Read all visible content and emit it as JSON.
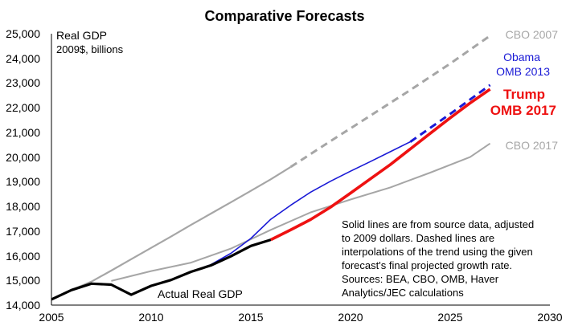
{
  "chart_data": {
    "type": "line",
    "title": "Comparative Forecasts",
    "ylabel_line1": "Real GDP",
    "ylabel_line2": "2009$, billions",
    "xlim": [
      2005,
      2030
    ],
    "ylim": [
      14000,
      25000
    ],
    "x_ticks": [
      "2005",
      "2010",
      "2015",
      "2020",
      "2025",
      "2030"
    ],
    "y_ticks": [
      "14,000",
      "15,000",
      "16,000",
      "17,000",
      "18,000",
      "19,000",
      "20,000",
      "21,000",
      "22,000",
      "23,000",
      "24,000",
      "25,000"
    ],
    "grid": false,
    "colors": {
      "actual": "#000000",
      "cbo": "#a6a6a6",
      "obama": "#1a1ad6",
      "trump": "#ee1111"
    },
    "series": [
      {
        "name": "Actual Real GDP",
        "style": "solid",
        "points": [
          [
            2005,
            14230
          ],
          [
            2006,
            14610
          ],
          [
            2007,
            14870
          ],
          [
            2008,
            14830
          ],
          [
            2009,
            14420
          ],
          [
            2010,
            14780
          ],
          [
            2011,
            15020
          ],
          [
            2012,
            15350
          ],
          [
            2013,
            15610
          ],
          [
            2014,
            15980
          ],
          [
            2015,
            16400
          ],
          [
            2016,
            16650
          ]
        ]
      },
      {
        "name": "CBO 2007",
        "style": "solid",
        "points": [
          [
            2006,
            14610
          ],
          [
            2007,
            14950
          ],
          [
            2008,
            15400
          ],
          [
            2009,
            15860
          ],
          [
            2010,
            16320
          ],
          [
            2011,
            16780
          ],
          [
            2012,
            17250
          ],
          [
            2013,
            17710
          ],
          [
            2014,
            18170
          ],
          [
            2015,
            18630
          ],
          [
            2016,
            19100
          ],
          [
            2017,
            19600
          ]
        ]
      },
      {
        "name": "CBO 2007 (interpolated)",
        "style": "dashed",
        "points": [
          [
            2017,
            19600
          ],
          [
            2019,
            20650
          ],
          [
            2021,
            21680
          ],
          [
            2023,
            22720
          ],
          [
            2025,
            23790
          ],
          [
            2027,
            24920
          ]
        ]
      },
      {
        "name": "Obama OMB 2013",
        "style": "solid",
        "points": [
          [
            2012,
            15350
          ],
          [
            2013,
            15640
          ],
          [
            2014,
            16100
          ],
          [
            2015,
            16700
          ],
          [
            2016,
            17480
          ],
          [
            2017,
            18050
          ],
          [
            2018,
            18580
          ],
          [
            2019,
            19020
          ],
          [
            2020,
            19430
          ],
          [
            2021,
            19820
          ],
          [
            2022,
            20220
          ],
          [
            2023,
            20620
          ]
        ]
      },
      {
        "name": "Obama OMB 2013 (interpolated)",
        "style": "dashed",
        "points": [
          [
            2023,
            20620
          ],
          [
            2025,
            21750
          ],
          [
            2027,
            22920
          ]
        ]
      },
      {
        "name": "Trump OMB 2017",
        "style": "solid",
        "points": [
          [
            2016,
            16650
          ],
          [
            2017,
            17050
          ],
          [
            2018,
            17470
          ],
          [
            2019,
            17970
          ],
          [
            2020,
            18540
          ],
          [
            2021,
            19120
          ],
          [
            2022,
            19700
          ],
          [
            2023,
            20330
          ],
          [
            2024,
            20960
          ],
          [
            2025,
            21590
          ],
          [
            2026,
            22190
          ],
          [
            2027,
            22750
          ]
        ]
      },
      {
        "name": "CBO 2017",
        "style": "solid",
        "points": [
          [
            2008,
            14980
          ],
          [
            2010,
            15380
          ],
          [
            2012,
            15720
          ],
          [
            2014,
            16290
          ],
          [
            2016,
            17050
          ],
          [
            2018,
            17760
          ],
          [
            2020,
            18280
          ],
          [
            2022,
            18770
          ],
          [
            2024,
            19370
          ],
          [
            2026,
            20000
          ],
          [
            2027,
            20550
          ]
        ]
      }
    ],
    "labels": {
      "cbo2007": "CBO 2007",
      "obama_line1": "Obama",
      "obama_line2": "OMB 2013",
      "trump_line1": "Trump",
      "trump_line2": "OMB 2017",
      "cbo2017": "CBO 2017",
      "actual": "Actual Real GDP"
    },
    "note_lines": [
      "Solid lines are from source data, adjusted",
      "to 2009 dollars. Dashed lines are",
      "interpolations of the trend using the given",
      "forecast's final projected growth rate.",
      "Sources: BEA, CBO, OMB, Haver",
      "Analytics/JEC calculations"
    ]
  }
}
